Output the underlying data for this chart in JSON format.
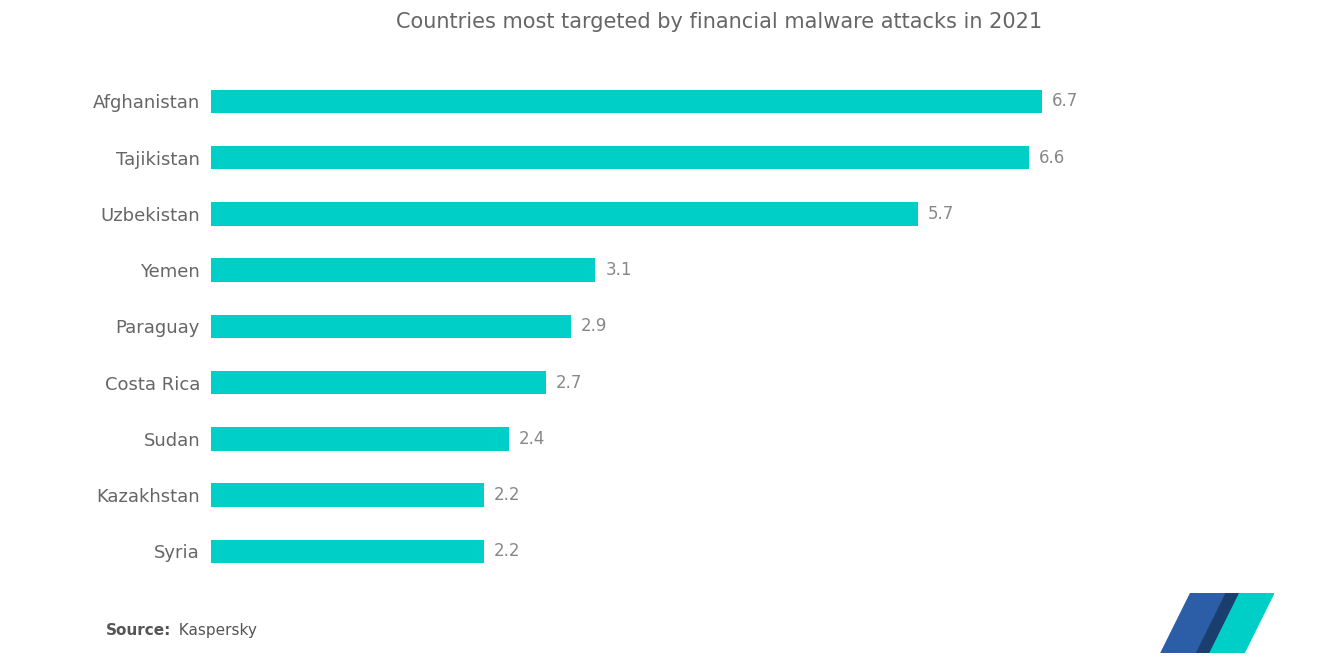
{
  "title": "Countries most targeted by financial malware attacks in 2021",
  "title_fontsize": 15,
  "title_color": "#666666",
  "source_label_bold": "Source:",
  "source_label_rest": "  Kaspersky",
  "categories": [
    "Syria",
    "Kazakhstan",
    "Sudan",
    "Costa Rica",
    "Paraguay",
    "Yemen",
    "Uzbekistan",
    "Tajikistan",
    "Afghanistan"
  ],
  "values": [
    2.2,
    2.2,
    2.4,
    2.7,
    2.9,
    3.1,
    5.7,
    6.6,
    6.7
  ],
  "bar_color": "#00CFC8",
  "value_label_color": "#888888",
  "value_label_fontsize": 12,
  "category_label_fontsize": 13,
  "category_label_color": "#666666",
  "background_color": "#ffffff",
  "xlim": [
    0,
    8.2
  ],
  "bar_height": 0.42,
  "fig_width": 13.2,
  "fig_height": 6.65,
  "dpi": 100,
  "logo_blue": "#2B5EA7",
  "logo_teal": "#00CFC8",
  "logo_dark": "#1A3F6F"
}
